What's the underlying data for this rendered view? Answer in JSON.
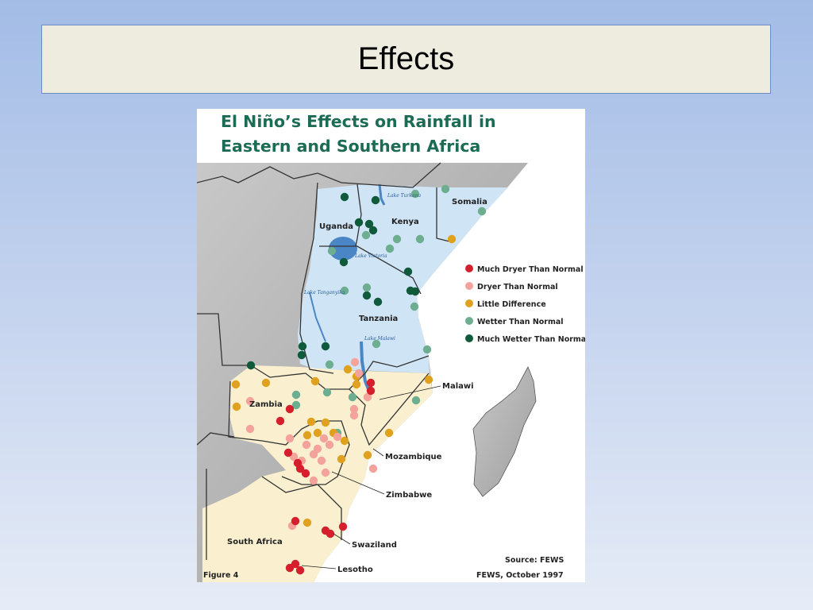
{
  "slide": {
    "title": "Effects"
  },
  "map": {
    "title_line1": "El Niño’s Effects on Rainfall in",
    "title_line2": "Eastern and Southern Africa",
    "countries": [
      "Somalia",
      "Uganda",
      "Kenya",
      "Tanzania",
      "Zambia",
      "Malawi",
      "Mozambique",
      "Zimbabwe",
      "South Africa",
      "Swaziland",
      "Lesotho"
    ],
    "lakes": [
      "Lake Turkana",
      "Lake Victoria",
      "Lake Tanganyika",
      "Lake Malawi"
    ],
    "legend": [
      {
        "label": "Much Dryer Than Normal",
        "color": "#d61f2c"
      },
      {
        "label": "Dryer Than Normal",
        "color": "#f4a39c"
      },
      {
        "label": "Little Difference",
        "color": "#e0a11f"
      },
      {
        "label": "Wetter Than Normal",
        "color": "#6cae8f"
      },
      {
        "label": "Much Wetter Than Normal",
        "color": "#0e5a3b"
      }
    ],
    "figure_label": "Figure 4",
    "source_line1": "Source: FEWS",
    "source_line2": "FEWS, October 1997",
    "colors": {
      "land": "#b4b4b4",
      "east_region": "#cfe4f5",
      "south_region": "#faf0d0",
      "lake": "#4a86c5",
      "title": "#1b6b55"
    }
  }
}
